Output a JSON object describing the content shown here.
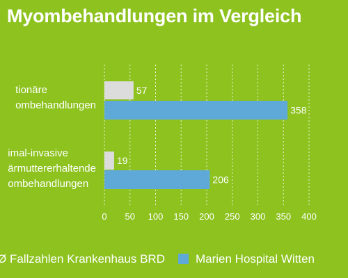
{
  "chart_data": {
    "type": "bar",
    "orientation": "horizontal",
    "title": "Myombehandlungen im Vergleich",
    "categories": [
      [
        "tionäre",
        "ombehandlungen"
      ],
      [
        "imal-invasive",
        "ärmuttererhaltende",
        "ombehandlungen"
      ]
    ],
    "series": [
      {
        "name": "Ø Fallzahlen Krankenhaus BRD",
        "values": [
          57,
          19
        ],
        "color": "#dcdcdc"
      },
      {
        "name": "Marien Hospital Witten",
        "values": [
          358,
          206
        ],
        "color": "#5ea9d8"
      }
    ],
    "xlim": [
      0,
      400
    ],
    "xticks": [
      0,
      50,
      100,
      150,
      200,
      250,
      300,
      350,
      400
    ],
    "grid": true,
    "legend": "bottom",
    "data_labels": true
  },
  "colors": {
    "background": "#8dc21f",
    "text": "#ffffff",
    "grid": "#ffffff"
  }
}
